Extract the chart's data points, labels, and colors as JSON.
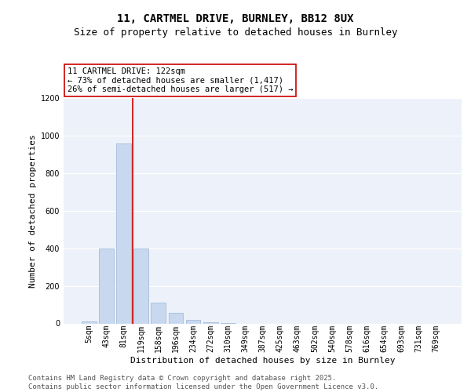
{
  "title_line1": "11, CARTMEL DRIVE, BURNLEY, BB12 8UX",
  "title_line2": "Size of property relative to detached houses in Burnley",
  "xlabel": "Distribution of detached houses by size in Burnley",
  "ylabel": "Number of detached properties",
  "categories": [
    "5sqm",
    "43sqm",
    "81sqm",
    "119sqm",
    "158sqm",
    "196sqm",
    "234sqm",
    "272sqm",
    "310sqm",
    "349sqm",
    "387sqm",
    "425sqm",
    "463sqm",
    "502sqm",
    "540sqm",
    "578sqm",
    "616sqm",
    "654sqm",
    "693sqm",
    "731sqm",
    "769sqm"
  ],
  "values": [
    10,
    400,
    960,
    400,
    110,
    55,
    17,
    8,
    2,
    0,
    0,
    0,
    0,
    0,
    0,
    0,
    0,
    0,
    0,
    0,
    0
  ],
  "bar_color": "#c8d9ef",
  "bar_edgecolor": "#9ab4d6",
  "vline_color": "#cc0000",
  "vline_x": 2.5,
  "annotation_text": "11 CARTMEL DRIVE: 122sqm\n← 73% of detached houses are smaller (1,417)\n26% of semi-detached houses are larger (517) →",
  "annotation_box_facecolor": "#ffffff",
  "annotation_box_edgecolor": "#cc0000",
  "ylim_max": 1200,
  "yticks": [
    0,
    200,
    400,
    600,
    800,
    1000,
    1200
  ],
  "plot_bg": "#edf1f9",
  "grid_color": "#ffffff",
  "footer_text": "Contains HM Land Registry data © Crown copyright and database right 2025.\nContains public sector information licensed under the Open Government Licence v3.0.",
  "title_fontsize": 10,
  "subtitle_fontsize": 9,
  "ylabel_fontsize": 8,
  "xlabel_fontsize": 8,
  "tick_fontsize": 7,
  "annotation_fontsize": 7.5,
  "footer_fontsize": 6.5
}
